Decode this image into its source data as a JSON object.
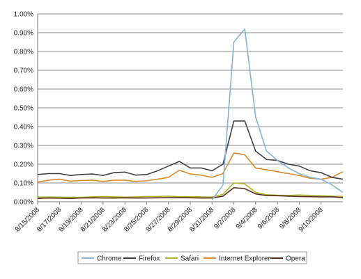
{
  "chart_data": {
    "type": "line",
    "x": [
      "8/15/2008",
      "8/16/2008",
      "8/17/2008",
      "8/18/2008",
      "8/19/2008",
      "8/20/2008",
      "8/21/2008",
      "8/22/2008",
      "8/23/2008",
      "8/24/2008",
      "8/25/2008",
      "8/26/2008",
      "8/27/2008",
      "8/28/2008",
      "8/29/2008",
      "8/30/2008",
      "8/31/2008",
      "9/1/2008",
      "9/2/2008",
      "9/3/2008",
      "9/4/2008",
      "9/5/2008",
      "9/6/2008",
      "9/7/2008",
      "9/8/2008",
      "9/9/2008",
      "9/10/2008",
      "9/11/2008",
      "9/12/2008"
    ],
    "x_tick_labels": [
      "8/15/2008",
      "8/17/2008",
      "8/19/2008",
      "8/21/2008",
      "8/23/2008",
      "8/25/2008",
      "8/27/2008",
      "8/29/2008",
      "8/31/2008",
      "9/2/2008",
      "9/4/2008",
      "9/6/2008",
      "9/8/2008",
      "9/10/2008"
    ],
    "y_tick_labels": [
      "0.00%",
      "0.10%",
      "0.20%",
      "0.30%",
      "0.40%",
      "0.50%",
      "0.60%",
      "0.70%",
      "0.80%",
      "0.90%",
      "1.00%"
    ],
    "ylim": [
      0,
      1.0
    ],
    "y_unit": "%",
    "grid": "horizontal",
    "legend_position": "bottom",
    "series": [
      {
        "name": "Chrome",
        "color": "#86b2d6",
        "values": [
          null,
          null,
          null,
          null,
          null,
          null,
          null,
          null,
          null,
          null,
          null,
          null,
          null,
          null,
          null,
          null,
          0.01,
          0.09,
          0.85,
          0.92,
          0.45,
          0.27,
          0.22,
          0.18,
          0.15,
          0.13,
          0.12,
          0.09,
          0.05
        ]
      },
      {
        "name": "Firefox",
        "color": "#3f3f46",
        "values": [
          0.145,
          0.15,
          0.15,
          0.14,
          0.145,
          0.148,
          0.14,
          0.155,
          0.158,
          0.142,
          0.145,
          0.165,
          0.19,
          0.215,
          0.18,
          0.18,
          0.165,
          0.2,
          0.43,
          0.43,
          0.27,
          0.225,
          0.22,
          0.2,
          0.19,
          0.165,
          0.155,
          0.13,
          0.12
        ]
      },
      {
        "name": "Safari",
        "color": "#aab52c",
        "values": [
          0.025,
          0.025,
          0.025,
          0.024,
          0.024,
          0.026,
          0.028,
          0.026,
          0.025,
          0.026,
          0.028,
          0.028,
          0.03,
          0.027,
          0.027,
          0.026,
          0.025,
          0.04,
          0.1,
          0.095,
          0.05,
          0.038,
          0.035,
          0.034,
          0.036,
          0.034,
          0.032,
          0.03,
          0.028
        ]
      },
      {
        "name": "Internet Explorer",
        "color": "#d98a2d",
        "values": [
          0.105,
          0.115,
          0.12,
          0.11,
          0.113,
          0.115,
          0.108,
          0.115,
          0.115,
          0.108,
          0.112,
          0.12,
          0.13,
          0.168,
          0.148,
          0.142,
          0.13,
          0.15,
          0.26,
          0.25,
          0.18,
          0.17,
          0.16,
          0.15,
          0.14,
          0.125,
          0.12,
          0.13,
          0.16
        ]
      },
      {
        "name": "Opera",
        "color": "#5a2e22",
        "values": [
          0.018,
          0.02,
          0.019,
          0.018,
          0.02,
          0.021,
          0.02,
          0.02,
          0.021,
          0.02,
          0.02,
          0.021,
          0.022,
          0.022,
          0.021,
          0.02,
          0.02,
          0.03,
          0.075,
          0.07,
          0.042,
          0.033,
          0.032,
          0.03,
          0.028,
          0.027,
          0.026,
          0.026,
          0.022
        ]
      }
    ]
  }
}
